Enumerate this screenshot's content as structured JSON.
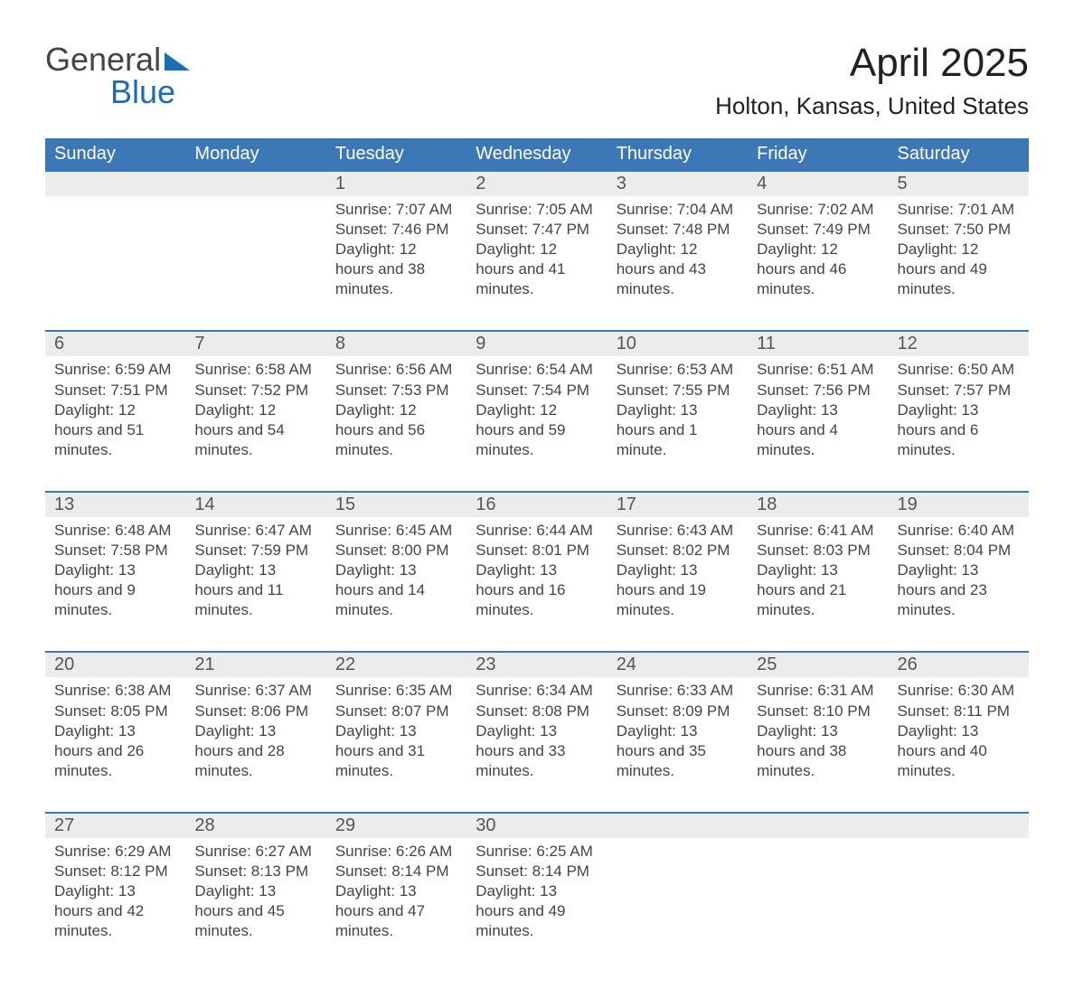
{
  "brand": {
    "name1": "General",
    "name2": "Blue",
    "triangle_color": "#1d6db2"
  },
  "title": "April 2025",
  "location": "Holton, Kansas, United States",
  "colors": {
    "header_bg": "#3b78b5",
    "header_text": "#ffffff",
    "daynum_bg": "#ececec",
    "daynum_border_top": "#3b78b5",
    "body_text": "#444444",
    "title_text": "#222222",
    "brand_gray": "#444444",
    "brand_blue": "#1d6db2",
    "background": "#ffffff"
  },
  "fonts": {
    "title_pt": 44,
    "location_pt": 26,
    "weekday_pt": 20,
    "daynum_pt": 20,
    "cell_pt": 17
  },
  "weekdays": [
    "Sunday",
    "Monday",
    "Tuesday",
    "Wednesday",
    "Thursday",
    "Friday",
    "Saturday"
  ],
  "weeks": [
    [
      null,
      null,
      {
        "n": "1",
        "sr": "7:07 AM",
        "ss": "7:46 PM",
        "dl": "12 hours and 38 minutes."
      },
      {
        "n": "2",
        "sr": "7:05 AM",
        "ss": "7:47 PM",
        "dl": "12 hours and 41 minutes."
      },
      {
        "n": "3",
        "sr": "7:04 AM",
        "ss": "7:48 PM",
        "dl": "12 hours and 43 minutes."
      },
      {
        "n": "4",
        "sr": "7:02 AM",
        "ss": "7:49 PM",
        "dl": "12 hours and 46 minutes."
      },
      {
        "n": "5",
        "sr": "7:01 AM",
        "ss": "7:50 PM",
        "dl": "12 hours and 49 minutes."
      }
    ],
    [
      {
        "n": "6",
        "sr": "6:59 AM",
        "ss": "7:51 PM",
        "dl": "12 hours and 51 minutes."
      },
      {
        "n": "7",
        "sr": "6:58 AM",
        "ss": "7:52 PM",
        "dl": "12 hours and 54 minutes."
      },
      {
        "n": "8",
        "sr": "6:56 AM",
        "ss": "7:53 PM",
        "dl": "12 hours and 56 minutes."
      },
      {
        "n": "9",
        "sr": "6:54 AM",
        "ss": "7:54 PM",
        "dl": "12 hours and 59 minutes."
      },
      {
        "n": "10",
        "sr": "6:53 AM",
        "ss": "7:55 PM",
        "dl": "13 hours and 1 minute."
      },
      {
        "n": "11",
        "sr": "6:51 AM",
        "ss": "7:56 PM",
        "dl": "13 hours and 4 minutes."
      },
      {
        "n": "12",
        "sr": "6:50 AM",
        "ss": "7:57 PM",
        "dl": "13 hours and 6 minutes."
      }
    ],
    [
      {
        "n": "13",
        "sr": "6:48 AM",
        "ss": "7:58 PM",
        "dl": "13 hours and 9 minutes."
      },
      {
        "n": "14",
        "sr": "6:47 AM",
        "ss": "7:59 PM",
        "dl": "13 hours and 11 minutes."
      },
      {
        "n": "15",
        "sr": "6:45 AM",
        "ss": "8:00 PM",
        "dl": "13 hours and 14 minutes."
      },
      {
        "n": "16",
        "sr": "6:44 AM",
        "ss": "8:01 PM",
        "dl": "13 hours and 16 minutes."
      },
      {
        "n": "17",
        "sr": "6:43 AM",
        "ss": "8:02 PM",
        "dl": "13 hours and 19 minutes."
      },
      {
        "n": "18",
        "sr": "6:41 AM",
        "ss": "8:03 PM",
        "dl": "13 hours and 21 minutes."
      },
      {
        "n": "19",
        "sr": "6:40 AM",
        "ss": "8:04 PM",
        "dl": "13 hours and 23 minutes."
      }
    ],
    [
      {
        "n": "20",
        "sr": "6:38 AM",
        "ss": "8:05 PM",
        "dl": "13 hours and 26 minutes."
      },
      {
        "n": "21",
        "sr": "6:37 AM",
        "ss": "8:06 PM",
        "dl": "13 hours and 28 minutes."
      },
      {
        "n": "22",
        "sr": "6:35 AM",
        "ss": "8:07 PM",
        "dl": "13 hours and 31 minutes."
      },
      {
        "n": "23",
        "sr": "6:34 AM",
        "ss": "8:08 PM",
        "dl": "13 hours and 33 minutes."
      },
      {
        "n": "24",
        "sr": "6:33 AM",
        "ss": "8:09 PM",
        "dl": "13 hours and 35 minutes."
      },
      {
        "n": "25",
        "sr": "6:31 AM",
        "ss": "8:10 PM",
        "dl": "13 hours and 38 minutes."
      },
      {
        "n": "26",
        "sr": "6:30 AM",
        "ss": "8:11 PM",
        "dl": "13 hours and 40 minutes."
      }
    ],
    [
      {
        "n": "27",
        "sr": "6:29 AM",
        "ss": "8:12 PM",
        "dl": "13 hours and 42 minutes."
      },
      {
        "n": "28",
        "sr": "6:27 AM",
        "ss": "8:13 PM",
        "dl": "13 hours and 45 minutes."
      },
      {
        "n": "29",
        "sr": "6:26 AM",
        "ss": "8:14 PM",
        "dl": "13 hours and 47 minutes."
      },
      {
        "n": "30",
        "sr": "6:25 AM",
        "ss": "8:14 PM",
        "dl": "13 hours and 49 minutes."
      },
      null,
      null,
      null
    ]
  ],
  "labels": {
    "sunrise": "Sunrise: ",
    "sunset": "Sunset: ",
    "daylight": "Daylight: "
  }
}
